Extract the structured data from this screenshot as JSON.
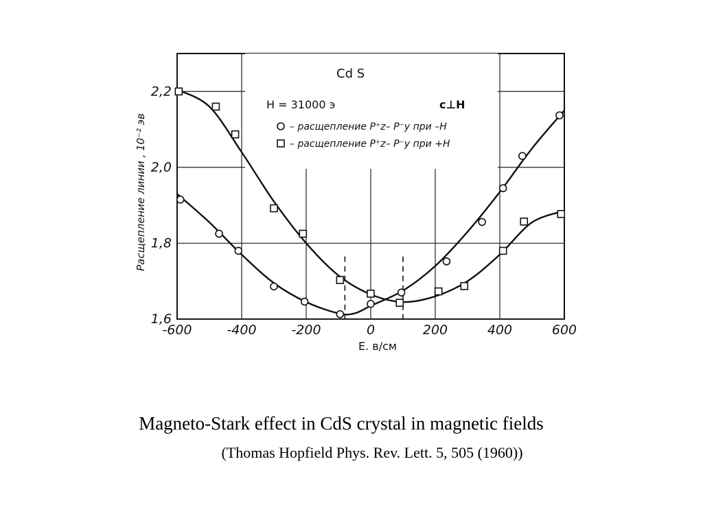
{
  "caption": {
    "line1": "Magneto-Stark effect in CdS crystal in magnetic fields",
    "line2": "(Thomas Hopfield Phys. Rev. Lett. 5, 505 (1960))"
  },
  "chart_data": {
    "type": "scatter",
    "title": "Cd S",
    "xlabel": "E. в/см",
    "ylabel": "Расщепление линии , 10⁻² эв",
    "xlim": [
      -600,
      600
    ],
    "ylim": [
      1.6,
      2.3
    ],
    "x_ticks": [
      -600,
      -400,
      -200,
      0,
      200,
      400,
      600
    ],
    "x_tick_labels": [
      "-600",
      "-400",
      "-200",
      "0",
      "200",
      "400",
      "600"
    ],
    "y_ticks": [
      1.6,
      1.8,
      2.0,
      2.2
    ],
    "y_tick_labels": [
      "1,6",
      "1,8",
      "2,0",
      "2,2"
    ],
    "grid": true,
    "legend": {
      "field": "H = 31000 э",
      "orientation": "c⊥H",
      "entries": [
        {
          "marker": "circle",
          "text": "– расщепление  P⁺z– P⁻y  при –H"
        },
        {
          "marker": "square",
          "text": "– расщепление  P⁺z– P⁻y  при +H"
        }
      ]
    },
    "dashed_lines_x": [
      -80,
      100
    ],
    "series": [
      {
        "name": "при –H",
        "marker": "circle",
        "points": [
          {
            "x": -590,
            "y": 1.915
          },
          {
            "x": -470,
            "y": 1.825
          },
          {
            "x": -410,
            "y": 1.78
          },
          {
            "x": -300,
            "y": 1.686
          },
          {
            "x": -205,
            "y": 1.646
          },
          {
            "x": -95,
            "y": 1.613
          },
          {
            "x": 0,
            "y": 1.64
          },
          {
            "x": 95,
            "y": 1.67
          },
          {
            "x": 235,
            "y": 1.752
          },
          {
            "x": 345,
            "y": 1.856
          },
          {
            "x": 410,
            "y": 1.945
          },
          {
            "x": 470,
            "y": 2.03
          },
          {
            "x": 585,
            "y": 2.137
          }
        ],
        "curve": [
          {
            "x": -600,
            "y": 1.93
          },
          {
            "x": -500,
            "y": 1.855
          },
          {
            "x": -400,
            "y": 1.77
          },
          {
            "x": -300,
            "y": 1.695
          },
          {
            "x": -200,
            "y": 1.645
          },
          {
            "x": -100,
            "y": 1.615
          },
          {
            "x": -50,
            "y": 1.615
          },
          {
            "x": 0,
            "y": 1.635
          },
          {
            "x": 100,
            "y": 1.675
          },
          {
            "x": 200,
            "y": 1.74
          },
          {
            "x": 300,
            "y": 1.83
          },
          {
            "x": 400,
            "y": 1.935
          },
          {
            "x": 500,
            "y": 2.05
          },
          {
            "x": 600,
            "y": 2.15
          }
        ]
      },
      {
        "name": "при +H",
        "marker": "square",
        "points": [
          {
            "x": -595,
            "y": 2.2
          },
          {
            "x": -480,
            "y": 2.16
          },
          {
            "x": -420,
            "y": 2.087
          },
          {
            "x": -300,
            "y": 1.892
          },
          {
            "x": -210,
            "y": 1.825
          },
          {
            "x": -95,
            "y": 1.703
          },
          {
            "x": 0,
            "y": 1.667
          },
          {
            "x": 90,
            "y": 1.643
          },
          {
            "x": 210,
            "y": 1.673
          },
          {
            "x": 290,
            "y": 1.687
          },
          {
            "x": 410,
            "y": 1.78
          },
          {
            "x": 475,
            "y": 1.857
          },
          {
            "x": 590,
            "y": 1.877
          }
        ],
        "curve": [
          {
            "x": -600,
            "y": 2.205
          },
          {
            "x": -500,
            "y": 2.16
          },
          {
            "x": -400,
            "y": 2.04
          },
          {
            "x": -300,
            "y": 1.91
          },
          {
            "x": -200,
            "y": 1.8
          },
          {
            "x": -100,
            "y": 1.715
          },
          {
            "x": 0,
            "y": 1.665
          },
          {
            "x": 100,
            "y": 1.645
          },
          {
            "x": 200,
            "y": 1.66
          },
          {
            "x": 300,
            "y": 1.7
          },
          {
            "x": 400,
            "y": 1.77
          },
          {
            "x": 500,
            "y": 1.855
          },
          {
            "x": 600,
            "y": 1.885
          }
        ]
      }
    ]
  }
}
